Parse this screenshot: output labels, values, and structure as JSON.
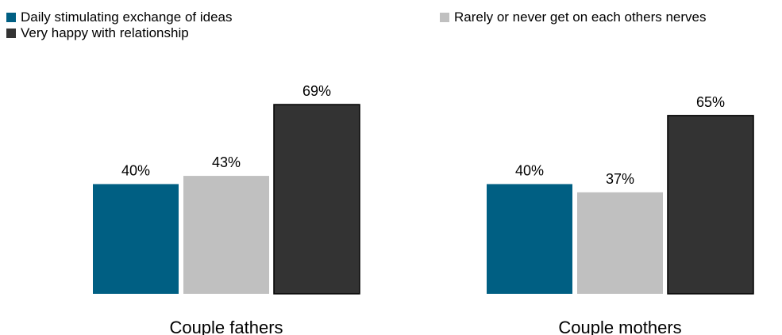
{
  "chart_data": {
    "type": "bar",
    "categories": [
      "Couple fathers",
      "Couple mothers"
    ],
    "series": [
      {
        "name": "Daily stimulating exchange of ideas",
        "values": [
          40,
          40
        ],
        "labels": [
          "40%",
          "40%"
        ],
        "color": "#005f83"
      },
      {
        "name": "Rarely or never get on each others nerves",
        "values": [
          43,
          37
        ],
        "labels": [
          "43%",
          "37%"
        ],
        "color": "#c0c0c0"
      },
      {
        "name": "Very happy with relationship",
        "values": [
          69,
          65
        ],
        "labels": [
          "69%",
          "65%"
        ],
        "color": "#333333"
      }
    ],
    "legend_position": "top",
    "grid": false,
    "ylim": [
      0,
      100
    ]
  }
}
